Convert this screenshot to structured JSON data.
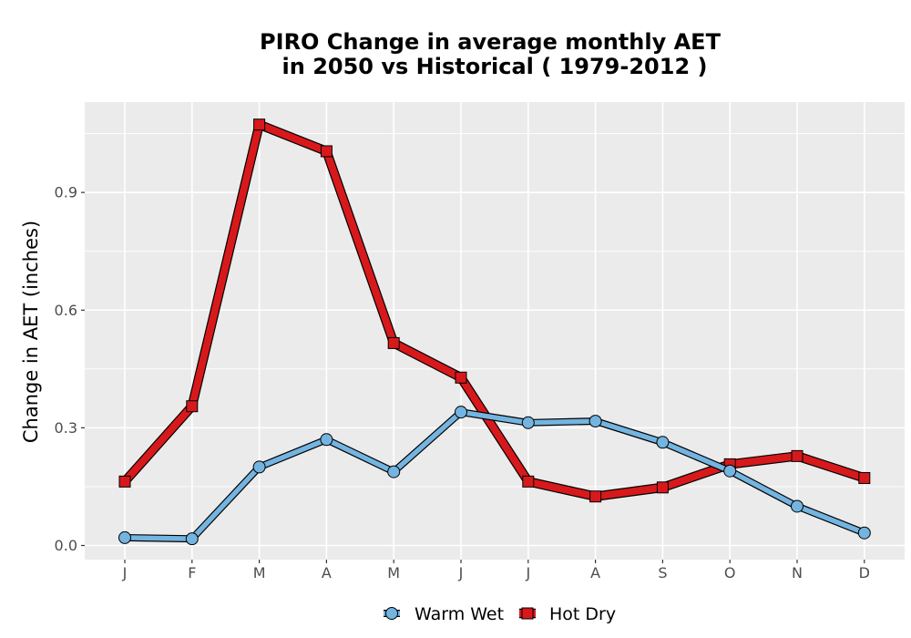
{
  "chart_data": {
    "type": "line",
    "title_line1": "PIRO  Change in average monthly AET",
    "title_line2": "in 2050 vs Historical ( 1979-2012 )",
    "xlabel": "",
    "ylabel": "Change in AET (inches)",
    "categories": [
      "J",
      "F",
      "M",
      "A",
      "M",
      "J",
      "J",
      "A",
      "S",
      "O",
      "N",
      "D"
    ],
    "ylim": [
      -0.04,
      1.1
    ],
    "yticks": [
      0.0,
      0.3,
      0.6,
      0.9
    ],
    "ytick_labels": [
      "0.0",
      "0.3",
      "0.6",
      "0.9"
    ],
    "grid": true,
    "legend_position": "bottom",
    "series": [
      {
        "name": "Warm Wet",
        "color": "#74b4e0",
        "marker": "circle",
        "values": [
          0.02,
          0.017,
          0.2,
          0.27,
          0.188,
          0.34,
          0.313,
          0.317,
          0.263,
          0.19,
          0.1,
          0.032
        ]
      },
      {
        "name": "Hot Dry",
        "color": "#d7191c",
        "marker": "square",
        "values": [
          0.163,
          0.355,
          1.073,
          1.005,
          0.516,
          0.428,
          0.163,
          0.125,
          0.148,
          0.207,
          0.228,
          0.172
        ]
      }
    ]
  }
}
